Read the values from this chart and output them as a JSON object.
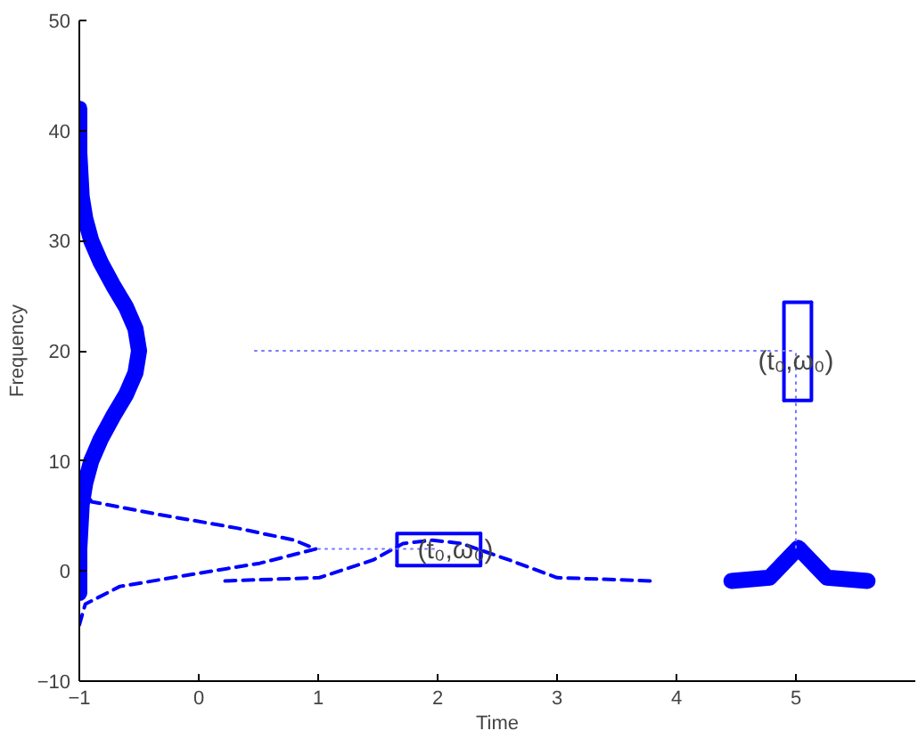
{
  "chart_data": {
    "type": "line",
    "xlabel": "Time",
    "ylabel": "Frequency",
    "xlim": [
      -1,
      6
    ],
    "ylim": [
      -10,
      50
    ],
    "xticks": [
      -1,
      0,
      1,
      2,
      3,
      4,
      5
    ],
    "yticks": [
      -10,
      0,
      10,
      20,
      30,
      40,
      50
    ],
    "grid": false,
    "series": [
      {
        "color": "#0000ff",
        "line_style": "solid",
        "x": [
          -1.0,
          -1.0,
          -1.0,
          -0.99,
          -0.98,
          -0.95,
          -0.9,
          -0.82,
          -0.72,
          -0.61,
          -0.53,
          -0.5,
          -0.53,
          -0.61,
          -0.72,
          -0.82,
          -0.9,
          -0.95,
          -0.98,
          -0.99,
          -1.0,
          -1.0,
          -1.0
        ],
        "values": [
          -2,
          0,
          2,
          4,
          6,
          8,
          10,
          12,
          14,
          16,
          18,
          20,
          22,
          24,
          26,
          28,
          30,
          32,
          34,
          36,
          38,
          40,
          42
        ]
      },
      {
        "color": "#0000ff",
        "line_style": "dashed",
        "x": [
          -1.0,
          -0.95,
          -0.66,
          0.0,
          0.51,
          0.98,
          0.8,
          0.32,
          -0.37,
          -0.9,
          -1.0
        ],
        "values": [
          -4.9,
          -3,
          -1.4,
          -0.2,
          0.7,
          2.0,
          2.8,
          3.9,
          5.2,
          6.3,
          9
        ]
      },
      {
        "color": "#0000ff",
        "line_style": "dashed",
        "x": [
          0.22,
          1.01,
          1.46,
          1.71,
          1.96,
          2.2,
          2.6,
          3.0,
          3.79
        ],
        "values": [
          -0.9,
          -0.6,
          1.0,
          2.5,
          2.8,
          2.5,
          1.0,
          -0.6,
          -0.9
        ]
      },
      {
        "color": "#0000ff",
        "line_style": "solid",
        "x": [
          4.46,
          4.78,
          5.02,
          5.26,
          5.6
        ],
        "values": [
          -0.9,
          -0.6,
          2.1,
          -0.6,
          -0.9
        ]
      },
      {
        "color": "#0000ff",
        "line_style": "solid",
        "x": [
          1.66,
          2.36,
          2.36
        ],
        "values": [
          0.5,
          0.5,
          3.4
        ]
      },
      {
        "color": "#0000ff",
        "line_style": "solid",
        "x": [
          1.66,
          1.66,
          2.36
        ],
        "values": [
          0.5,
          3.4,
          3.4
        ]
      },
      {
        "color": "#0000ff",
        "line_style": "solid",
        "x": [
          4.9,
          5.13,
          5.13
        ],
        "values": [
          15.5,
          15.5,
          24.4
        ]
      },
      {
        "color": "#0000ff",
        "line_style": "solid",
        "x": [
          4.9,
          4.9,
          5.13
        ],
        "values": [
          15.5,
          24.4,
          24.4
        ]
      },
      {
        "color": "#7777ff",
        "line_style": "dotted",
        "x": [
          1.0,
          2.0
        ],
        "values": [
          2.0,
          2.0
        ]
      },
      {
        "color": "#7777ff",
        "line_style": "dotted",
        "x": [
          0.47,
          5.0
        ],
        "values": [
          20,
          20
        ]
      },
      {
        "color": "#7777ff",
        "line_style": "dotted",
        "x": [
          5.0,
          5.0
        ],
        "values": [
          2.1,
          20
        ]
      }
    ],
    "annotations": [
      {
        "text": "(t₀,ω₀)",
        "x": 2.15,
        "y": 1.9
      },
      {
        "text": "(t₀,ω₀)",
        "x": 5.0,
        "y": 19
      }
    ]
  }
}
